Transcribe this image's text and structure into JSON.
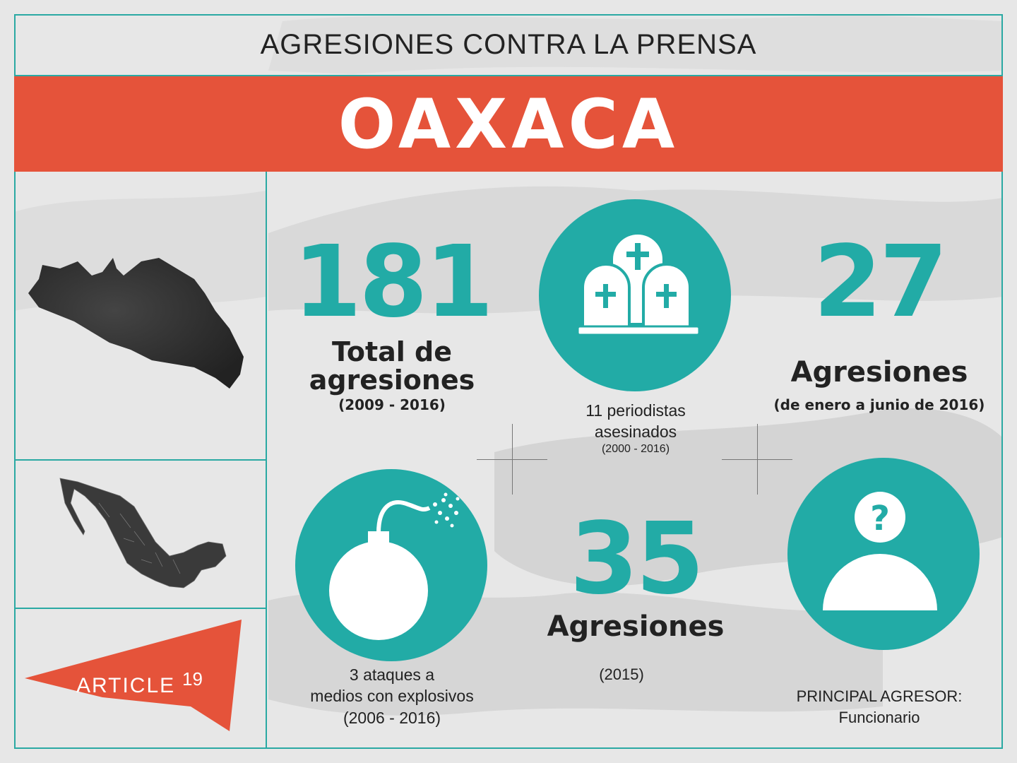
{
  "header": {
    "title": "AGRESIONES CONTRA LA PRENSA",
    "state": "OAXACA"
  },
  "stats": {
    "total": {
      "number": "181",
      "label_line1": "Total de",
      "label_line2": "agresiones",
      "period": "(2009 - 2016)"
    },
    "murdered": {
      "line1": "11 periodistas",
      "line2": "asesinados",
      "period": "(2000 - 2016)"
    },
    "recent": {
      "number": "27",
      "label": "Agresiones",
      "period": "(de enero a junio de 2016)"
    },
    "explosives": {
      "line1": "3 ataques a",
      "line2": "medios con explosivos",
      "period": "(2006 - 2016)"
    },
    "year2015": {
      "number": "35",
      "label": "Agresiones",
      "period": "(2015)"
    },
    "aggressor": {
      "line1": "PRINCIPAL AGRESOR:",
      "line2": "Funcionario"
    }
  },
  "logo": {
    "text": "ARTICLE",
    "sup": "19"
  },
  "icons": {
    "tombstones": "tombstones-icon",
    "bomb": "bomb-icon",
    "unknown_person": "unknown-person-icon",
    "state_map": "oaxaca-map-icon",
    "country_map": "mexico-map-icon"
  },
  "colors": {
    "teal": "#22aba6",
    "banner": "#e5533a",
    "text": "#222222"
  }
}
